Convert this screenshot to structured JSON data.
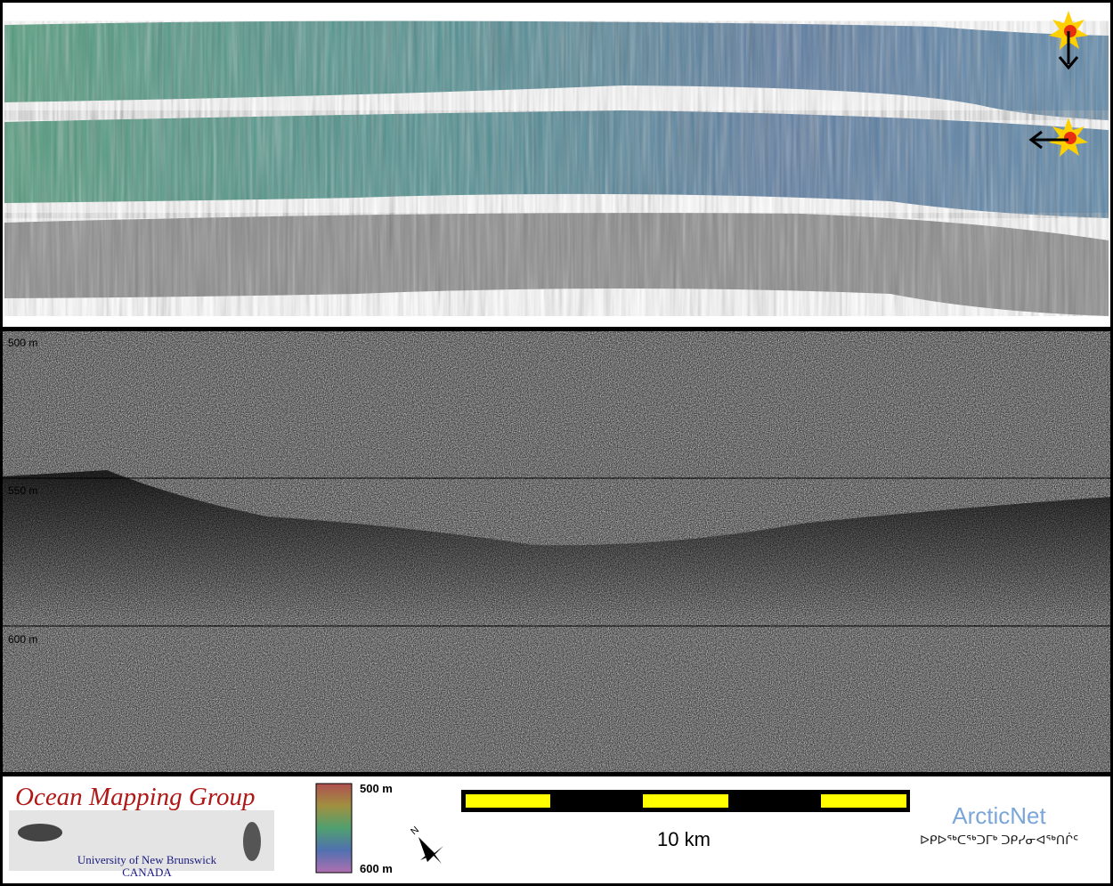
{
  "profile": {
    "depth_labels": [
      "500 m",
      "550 m",
      "600 m"
    ]
  },
  "footer": {
    "logo_title": "Ocean Mapping Group",
    "logo_line1": "University of New Brunswick",
    "logo_line2": "CANADA",
    "colorbar_top": "500 m",
    "colorbar_bottom": "600 m",
    "compass": "N",
    "scale_label": "10 km",
    "partner": "ArcticNet",
    "partner_syllabics": "ᐅᑭᐅᖅᑕᖅᑐᒥᒃ ᑐᑭᓯᓂᐊᖅᑎᒌᑦ"
  }
}
